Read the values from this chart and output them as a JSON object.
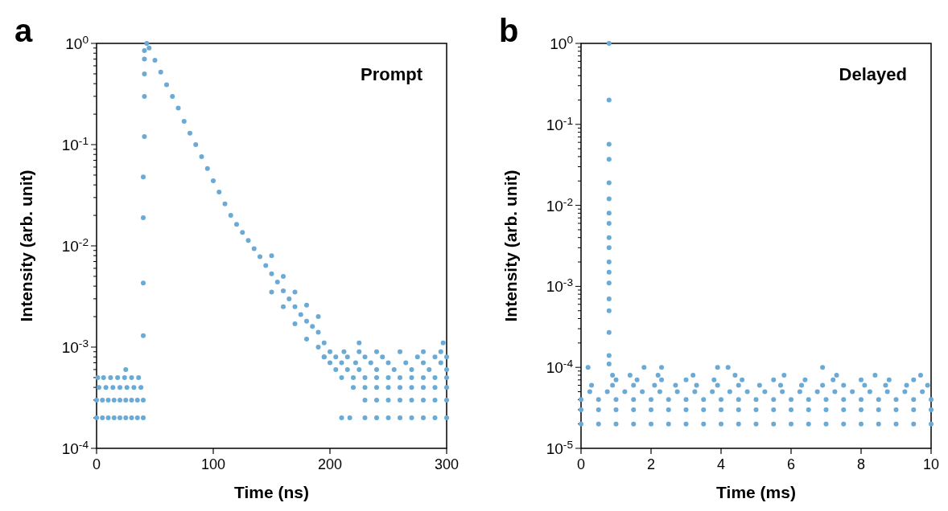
{
  "chart_data": [
    {
      "type": "scatter",
      "title": "a",
      "xlabel": "Time (ns)",
      "ylabel": "Intensity (arb. unit)",
      "annotations": [
        "Prompt"
      ],
      "log": "y",
      "marker": "circle",
      "xlim": [
        0,
        300
      ],
      "xticks": [
        0,
        100,
        200,
        300
      ],
      "ylim": [
        0.0001,
        1
      ],
      "yticks": [
        {
          "value": 0.0001,
          "label": "10$^{-4}$"
        },
        {
          "value": 0.0002,
          "label": null
        },
        {
          "value": 0.0003,
          "label": null
        },
        {
          "value": 0.0004,
          "label": null
        },
        {
          "value": 0.0005,
          "label": null
        },
        {
          "value": 0.0006,
          "label": null
        },
        {
          "value": 0.0007,
          "label": null
        },
        {
          "value": 0.0008,
          "label": null
        },
        {
          "value": 0.0009,
          "label": null
        },
        {
          "value": 0.001,
          "label": "10$^{-3}$"
        },
        {
          "value": 0.002,
          "label": null
        },
        {
          "value": 0.003,
          "label": null
        },
        {
          "value": 0.004,
          "label": null
        },
        {
          "value": 0.005,
          "label": null
        },
        {
          "value": 0.006,
          "label": null
        },
        {
          "value": 0.007,
          "label": null
        },
        {
          "value": 0.008,
          "label": null
        },
        {
          "value": 0.009,
          "label": null
        },
        {
          "value": 0.01,
          "label": "10$^{-2}$"
        },
        {
          "value": 0.02,
          "label": null
        },
        {
          "value": 0.03,
          "label": null
        },
        {
          "value": 0.04,
          "label": null
        },
        {
          "value": 0.05,
          "label": null
        },
        {
          "value": 0.06,
          "label": null
        },
        {
          "value": 0.07,
          "label": null
        },
        {
          "value": 0.08,
          "label": null
        },
        {
          "value": 0.09,
          "label": null
        },
        {
          "value": 0.1,
          "label": "10$^{-1}$"
        },
        {
          "value": 0.2,
          "label": null
        },
        {
          "value": 0.3,
          "label": null
        },
        {
          "value": 0.4,
          "label": null
        },
        {
          "value": 0.5,
          "label": null
        },
        {
          "value": 0.6,
          "label": null
        },
        {
          "value": 0.7,
          "label": null
        },
        {
          "value": 0.8,
          "label": null
        },
        {
          "value": 0.9,
          "label": null
        },
        {
          "value": 1,
          "label": "10$^{0}$"
        }
      ],
      "series": [
        {
          "color": "#6aaad6",
          "x": [
            0,
            5,
            10,
            15,
            20,
            25,
            30,
            35,
            40,
            0,
            5,
            10,
            15,
            20,
            25,
            30,
            35,
            40,
            2,
            8,
            14,
            20,
            26,
            32,
            38,
            1,
            6,
            12,
            18,
            24,
            30,
            36,
            25,
            40,
            40,
            40,
            40,
            41,
            41,
            41,
            41,
            41,
            43,
            45,
            50,
            55,
            60,
            65,
            70,
            75,
            80,
            85,
            90,
            95,
            100,
            105,
            110,
            115,
            120,
            125,
            130,
            135,
            140,
            145,
            150,
            155,
            160,
            165,
            170,
            175,
            180,
            185,
            190,
            150,
            150,
            160,
            160,
            170,
            170,
            180,
            180,
            190,
            190,
            195,
            195,
            210,
            217,
            230,
            240,
            250,
            260,
            270,
            280,
            290,
            300,
            230,
            240,
            250,
            260,
            270,
            280,
            290,
            300,
            220,
            230,
            240,
            250,
            260,
            270,
            280,
            290,
            300,
            210,
            220,
            230,
            240,
            250,
            260,
            270,
            280,
            290,
            300,
            205,
            215,
            225,
            240,
            255,
            270,
            285,
            300,
            200,
            210,
            222,
            235,
            250,
            265,
            280,
            295,
            195,
            205,
            215,
            230,
            245,
            275,
            290,
            300,
            200,
            212,
            225,
            240,
            260,
            280,
            295,
            225,
            297
          ],
          "values": [
            0.0002,
            0.0002,
            0.0002,
            0.0002,
            0.0002,
            0.0002,
            0.0002,
            0.0002,
            0.0002,
            0.0003,
            0.0003,
            0.0003,
            0.0003,
            0.0003,
            0.0003,
            0.0003,
            0.0003,
            0.0003,
            0.0004,
            0.0004,
            0.0004,
            0.0004,
            0.0004,
            0.0004,
            0.0004,
            0.0005,
            0.0005,
            0.0005,
            0.0005,
            0.0005,
            0.0005,
            0.0005,
            0.0006,
            0.0013,
            0.0043,
            0.019,
            0.048,
            0.12,
            0.3,
            0.5,
            0.7,
            0.85,
            1,
            0.9,
            0.68,
            0.52,
            0.39,
            0.3,
            0.23,
            0.17,
            0.13,
            0.1,
            0.076,
            0.058,
            0.044,
            0.034,
            0.026,
            0.02,
            0.0163,
            0.0136,
            0.0113,
            0.0094,
            0.0078,
            0.0064,
            0.0053,
            0.0044,
            0.0036,
            0.003,
            0.0025,
            0.0021,
            0.0018,
            0.0016,
            0.0014,
            0.0035,
            0.008,
            0.0025,
            0.005,
            0.0017,
            0.0035,
            0.0012,
            0.0026,
            0.001,
            0.002,
            0.0011,
            0.0008,
            0.0002,
            0.0002,
            0.0002,
            0.0002,
            0.0002,
            0.0002,
            0.0002,
            0.0002,
            0.0002,
            0.0002,
            0.0003,
            0.0003,
            0.0003,
            0.0003,
            0.0003,
            0.0003,
            0.0003,
            0.0003,
            0.0004,
            0.0004,
            0.0004,
            0.0004,
            0.0004,
            0.0004,
            0.0004,
            0.0004,
            0.0004,
            0.0005,
            0.0005,
            0.0005,
            0.0005,
            0.0005,
            0.0005,
            0.0005,
            0.0005,
            0.0005,
            0.0005,
            0.0006,
            0.0006,
            0.0006,
            0.0006,
            0.0006,
            0.0006,
            0.0006,
            0.0006,
            0.0007,
            0.0007,
            0.0007,
            0.0007,
            0.0007,
            0.0007,
            0.0007,
            0.0007,
            0.0008,
            0.0008,
            0.0008,
            0.0008,
            0.0008,
            0.0008,
            0.0008,
            0.0008,
            0.0009,
            0.0009,
            0.0009,
            0.0009,
            0.0009,
            0.0009,
            0.0009,
            0.0011,
            0.0011
          ]
        }
      ]
    },
    {
      "type": "scatter",
      "title": "b",
      "xlabel": "Time (ms)",
      "ylabel": "Intensity (arb. unit)",
      "annotations": [
        "Delayed"
      ],
      "log": "y",
      "marker": "circle",
      "xlim": [
        0,
        10
      ],
      "xticks": [
        0,
        2,
        4,
        6,
        8,
        10
      ],
      "ylim": [
        1e-05,
        1
      ],
      "yticks": [
        {
          "value": 1e-05,
          "label": "10$^{-5}$"
        },
        {
          "value": 2e-05,
          "label": null
        },
        {
          "value": 3e-05,
          "label": null
        },
        {
          "value": 4e-05,
          "label": null
        },
        {
          "value": 5e-05,
          "label": null
        },
        {
          "value": 6e-05,
          "label": null
        },
        {
          "value": 7e-05,
          "label": null
        },
        {
          "value": 8e-05,
          "label": null
        },
        {
          "value": 9e-05,
          "label": null
        },
        {
          "value": 0.0001,
          "label": "10$^{-4}$"
        },
        {
          "value": 0.0002,
          "label": null
        },
        {
          "value": 0.0003,
          "label": null
        },
        {
          "value": 0.0004,
          "label": null
        },
        {
          "value": 0.0005,
          "label": null
        },
        {
          "value": 0.0006,
          "label": null
        },
        {
          "value": 0.0007,
          "label": null
        },
        {
          "value": 0.0008,
          "label": null
        },
        {
          "value": 0.0009,
          "label": null
        },
        {
          "value": 0.001,
          "label": "10$^{-3}$"
        },
        {
          "value": 0.002,
          "label": null
        },
        {
          "value": 0.003,
          "label": null
        },
        {
          "value": 0.004,
          "label": null
        },
        {
          "value": 0.005,
          "label": null
        },
        {
          "value": 0.006,
          "label": null
        },
        {
          "value": 0.007,
          "label": null
        },
        {
          "value": 0.008,
          "label": null
        },
        {
          "value": 0.009,
          "label": null
        },
        {
          "value": 0.01,
          "label": "10$^{-2}$"
        },
        {
          "value": 0.02,
          "label": null
        },
        {
          "value": 0.03,
          "label": null
        },
        {
          "value": 0.04,
          "label": null
        },
        {
          "value": 0.05,
          "label": null
        },
        {
          "value": 0.06,
          "label": null
        },
        {
          "value": 0.07,
          "label": null
        },
        {
          "value": 0.08,
          "label": null
        },
        {
          "value": 0.09,
          "label": null
        },
        {
          "value": 0.1,
          "label": "10$^{-1}$"
        },
        {
          "value": 0.2,
          "label": null
        },
        {
          "value": 0.3,
          "label": null
        },
        {
          "value": 0.4,
          "label": null
        },
        {
          "value": 0.5,
          "label": null
        },
        {
          "value": 0.6,
          "label": null
        },
        {
          "value": 0.7,
          "label": null
        },
        {
          "value": 0.8,
          "label": null
        },
        {
          "value": 0.9,
          "label": null
        },
        {
          "value": 1,
          "label": "10$^{0}$"
        }
      ],
      "series": [
        {
          "color": "#6aaad6",
          "x": [
            0.8,
            0.8,
            0.8,
            0.8,
            0.8,
            0.8,
            0.8,
            0.8,
            0.8,
            0.8,
            0.8,
            0.8,
            0.8,
            0.8,
            0.8,
            0.8,
            0.8,
            0.8,
            0,
            0.5,
            1,
            1.5,
            2,
            2.5,
            3,
            3.5,
            4,
            4.5,
            5,
            5.5,
            6,
            6.5,
            7,
            7.5,
            8,
            8.5,
            9,
            9.5,
            10,
            0,
            0.5,
            1,
            1.5,
            2,
            2.5,
            3,
            3.5,
            4,
            4.5,
            5,
            5.5,
            6,
            6.5,
            7,
            7.5,
            8,
            8.5,
            9,
            9.5,
            10,
            0,
            0.5,
            1,
            1.5,
            2,
            2.5,
            3,
            3.5,
            4,
            4.5,
            5,
            5.5,
            6,
            6.5,
            7,
            7.5,
            8,
            8.5,
            9,
            9.5,
            10,
            0.25,
            0.75,
            1.25,
            1.75,
            2.25,
            2.75,
            3.25,
            3.75,
            4.25,
            4.75,
            5.25,
            5.75,
            6.25,
            6.75,
            7.25,
            7.75,
            8.25,
            8.75,
            9.25,
            9.75,
            0.3,
            0.9,
            1.5,
            2.1,
            2.7,
            3.3,
            3.9,
            4.5,
            5.1,
            5.7,
            6.3,
            6.9,
            7.5,
            8.1,
            8.7,
            9.3,
            9.9,
            1,
            1.6,
            2.3,
            3,
            3.8,
            4.6,
            5.5,
            6.4,
            7.2,
            8,
            8.8,
            9.5,
            0.9,
            1.4,
            2.2,
            3.2,
            4.4,
            5.8,
            7.3,
            8.4,
            9.7,
            0.2,
            1.8,
            2.3,
            3.9,
            4.2,
            6.9
          ],
          "values": [
            1,
            0.2,
            0.057,
            0.037,
            0.019,
            0.012,
            0.008,
            0.006,
            0.004,
            0.003,
            0.002,
            0.0015,
            0.0011,
            0.0007,
            0.0005,
            0.00027,
            0.00014,
            0.00011,
            2e-05,
            2e-05,
            2e-05,
            2e-05,
            2e-05,
            2e-05,
            2e-05,
            2e-05,
            2e-05,
            2e-05,
            2e-05,
            2e-05,
            2e-05,
            2e-05,
            2e-05,
            2e-05,
            2e-05,
            2e-05,
            2e-05,
            2e-05,
            2e-05,
            3e-05,
            3e-05,
            3e-05,
            3e-05,
            3e-05,
            3e-05,
            3e-05,
            3e-05,
            3e-05,
            3e-05,
            3e-05,
            3e-05,
            3e-05,
            3e-05,
            3e-05,
            3e-05,
            3e-05,
            3e-05,
            3e-05,
            3e-05,
            3e-05,
            4e-05,
            4e-05,
            4e-05,
            4e-05,
            4e-05,
            4e-05,
            4e-05,
            4e-05,
            4e-05,
            4e-05,
            4e-05,
            4e-05,
            4e-05,
            4e-05,
            4e-05,
            4e-05,
            4e-05,
            4e-05,
            4e-05,
            4e-05,
            4e-05,
            5e-05,
            5e-05,
            5e-05,
            5e-05,
            5e-05,
            5e-05,
            5e-05,
            5e-05,
            5e-05,
            5e-05,
            5e-05,
            5e-05,
            5e-05,
            5e-05,
            5e-05,
            5e-05,
            5e-05,
            5e-05,
            5e-05,
            5e-05,
            6e-05,
            6e-05,
            6e-05,
            6e-05,
            6e-05,
            6e-05,
            6e-05,
            6e-05,
            6e-05,
            6e-05,
            6e-05,
            6e-05,
            6e-05,
            6e-05,
            6e-05,
            6e-05,
            6e-05,
            7e-05,
            7e-05,
            7e-05,
            7e-05,
            7e-05,
            7e-05,
            7e-05,
            7e-05,
            7e-05,
            7e-05,
            7e-05,
            7e-05,
            8e-05,
            8e-05,
            8e-05,
            8e-05,
            8e-05,
            8e-05,
            8e-05,
            8e-05,
            8e-05,
            0.0001,
            0.0001,
            0.0001,
            0.0001,
            0.0001,
            0.0001
          ]
        }
      ]
    }
  ]
}
